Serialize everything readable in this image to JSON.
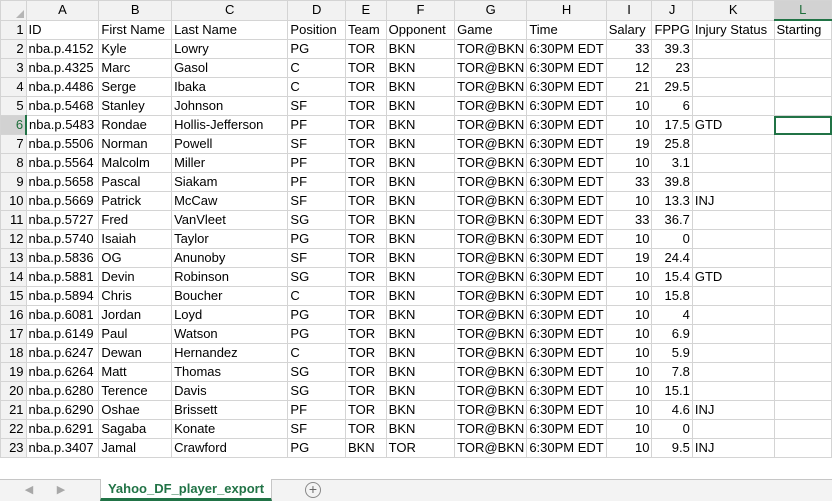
{
  "sheet": {
    "columns": [
      "A",
      "B",
      "C",
      "D",
      "E",
      "F",
      "G",
      "H",
      "I",
      "J",
      "K",
      "L"
    ],
    "active_column": "L",
    "active_row": 6,
    "selected_cell": "L6",
    "rows": [
      {
        "n": "1",
        "c": [
          "ID",
          "First Name",
          "Last Name",
          "Position",
          "Team",
          "Opponent",
          "Game",
          "Time",
          "Salary",
          "FPPG",
          "Injury Status",
          "Starting"
        ]
      },
      {
        "n": "2",
        "c": [
          "nba.p.4152",
          "Kyle",
          "Lowry",
          "PG",
          "TOR",
          "BKN",
          "TOR@BKN",
          "6:30PM EDT",
          "33",
          "39.3",
          "",
          ""
        ]
      },
      {
        "n": "3",
        "c": [
          "nba.p.4325",
          "Marc",
          "Gasol",
          "C",
          "TOR",
          "BKN",
          "TOR@BKN",
          "6:30PM EDT",
          "12",
          "23",
          "",
          ""
        ]
      },
      {
        "n": "4",
        "c": [
          "nba.p.4486",
          "Serge",
          "Ibaka",
          "C",
          "TOR",
          "BKN",
          "TOR@BKN",
          "6:30PM EDT",
          "21",
          "29.5",
          "",
          ""
        ]
      },
      {
        "n": "5",
        "c": [
          "nba.p.5468",
          "Stanley",
          "Johnson",
          "SF",
          "TOR",
          "BKN",
          "TOR@BKN",
          "6:30PM EDT",
          "10",
          "6",
          "",
          ""
        ]
      },
      {
        "n": "6",
        "c": [
          "nba.p.5483",
          "Rondae",
          "Hollis-Jefferson",
          "PF",
          "TOR",
          "BKN",
          "TOR@BKN",
          "6:30PM EDT",
          "10",
          "17.5",
          "GTD",
          ""
        ]
      },
      {
        "n": "7",
        "c": [
          "nba.p.5506",
          "Norman",
          "Powell",
          "SF",
          "TOR",
          "BKN",
          "TOR@BKN",
          "6:30PM EDT",
          "19",
          "25.8",
          "",
          ""
        ]
      },
      {
        "n": "8",
        "c": [
          "nba.p.5564",
          "Malcolm",
          "Miller",
          "PF",
          "TOR",
          "BKN",
          "TOR@BKN",
          "6:30PM EDT",
          "10",
          "3.1",
          "",
          ""
        ]
      },
      {
        "n": "9",
        "c": [
          "nba.p.5658",
          "Pascal",
          "Siakam",
          "PF",
          "TOR",
          "BKN",
          "TOR@BKN",
          "6:30PM EDT",
          "33",
          "39.8",
          "",
          ""
        ]
      },
      {
        "n": "10",
        "c": [
          "nba.p.5669",
          "Patrick",
          "McCaw",
          "SF",
          "TOR",
          "BKN",
          "TOR@BKN",
          "6:30PM EDT",
          "10",
          "13.3",
          "INJ",
          ""
        ]
      },
      {
        "n": "11",
        "c": [
          "nba.p.5727",
          "Fred",
          "VanVleet",
          "SG",
          "TOR",
          "BKN",
          "TOR@BKN",
          "6:30PM EDT",
          "33",
          "36.7",
          "",
          ""
        ]
      },
      {
        "n": "12",
        "c": [
          "nba.p.5740",
          "Isaiah",
          "Taylor",
          "PG",
          "TOR",
          "BKN",
          "TOR@BKN",
          "6:30PM EDT",
          "10",
          "0",
          "",
          ""
        ]
      },
      {
        "n": "13",
        "c": [
          "nba.p.5836",
          "OG",
          "Anunoby",
          "SF",
          "TOR",
          "BKN",
          "TOR@BKN",
          "6:30PM EDT",
          "19",
          "24.4",
          "",
          ""
        ]
      },
      {
        "n": "14",
        "c": [
          "nba.p.5881",
          "Devin",
          "Robinson",
          "SG",
          "TOR",
          "BKN",
          "TOR@BKN",
          "6:30PM EDT",
          "10",
          "15.4",
          "GTD",
          ""
        ]
      },
      {
        "n": "15",
        "c": [
          "nba.p.5894",
          "Chris",
          "Boucher",
          "C",
          "TOR",
          "BKN",
          "TOR@BKN",
          "6:30PM EDT",
          "10",
          "15.8",
          "",
          ""
        ]
      },
      {
        "n": "16",
        "c": [
          "nba.p.6081",
          "Jordan",
          "Loyd",
          "PG",
          "TOR",
          "BKN",
          "TOR@BKN",
          "6:30PM EDT",
          "10",
          "4",
          "",
          ""
        ]
      },
      {
        "n": "17",
        "c": [
          "nba.p.6149",
          "Paul",
          "Watson",
          "PG",
          "TOR",
          "BKN",
          "TOR@BKN",
          "6:30PM EDT",
          "10",
          "6.9",
          "",
          ""
        ]
      },
      {
        "n": "18",
        "c": [
          "nba.p.6247",
          "Dewan",
          "Hernandez",
          "C",
          "TOR",
          "BKN",
          "TOR@BKN",
          "6:30PM EDT",
          "10",
          "5.9",
          "",
          ""
        ]
      },
      {
        "n": "19",
        "c": [
          "nba.p.6264",
          "Matt",
          "Thomas",
          "SG",
          "TOR",
          "BKN",
          "TOR@BKN",
          "6:30PM EDT",
          "10",
          "7.8",
          "",
          ""
        ]
      },
      {
        "n": "20",
        "c": [
          "nba.p.6280",
          "Terence",
          "Davis",
          "SG",
          "TOR",
          "BKN",
          "TOR@BKN",
          "6:30PM EDT",
          "10",
          "15.1",
          "",
          ""
        ]
      },
      {
        "n": "21",
        "c": [
          "nba.p.6290",
          "Oshae",
          "Brissett",
          "PF",
          "TOR",
          "BKN",
          "TOR@BKN",
          "6:30PM EDT",
          "10",
          "4.6",
          "INJ",
          ""
        ]
      },
      {
        "n": "22",
        "c": [
          "nba.p.6291",
          "Sagaba",
          "Konate",
          "SF",
          "TOR",
          "BKN",
          "TOR@BKN",
          "6:30PM EDT",
          "10",
          "0",
          "",
          ""
        ]
      },
      {
        "n": "23",
        "c": [
          "nba.p.3407",
          "Jamal",
          "Crawford",
          "PG",
          "BKN",
          "TOR",
          "TOR@BKN",
          "6:30PM EDT",
          "10",
          "9.5",
          "INJ",
          ""
        ]
      }
    ]
  },
  "tabs": {
    "active_sheet": "Yahoo_DF_player_export",
    "prev_icon": "triangle-left-icon",
    "next_icon": "triangle-right-icon",
    "add_icon": "plus-circle-icon"
  },
  "colors": {
    "accent": "#217346",
    "header_bg": "#f2f2f2",
    "grid": "#d4d4d4"
  }
}
